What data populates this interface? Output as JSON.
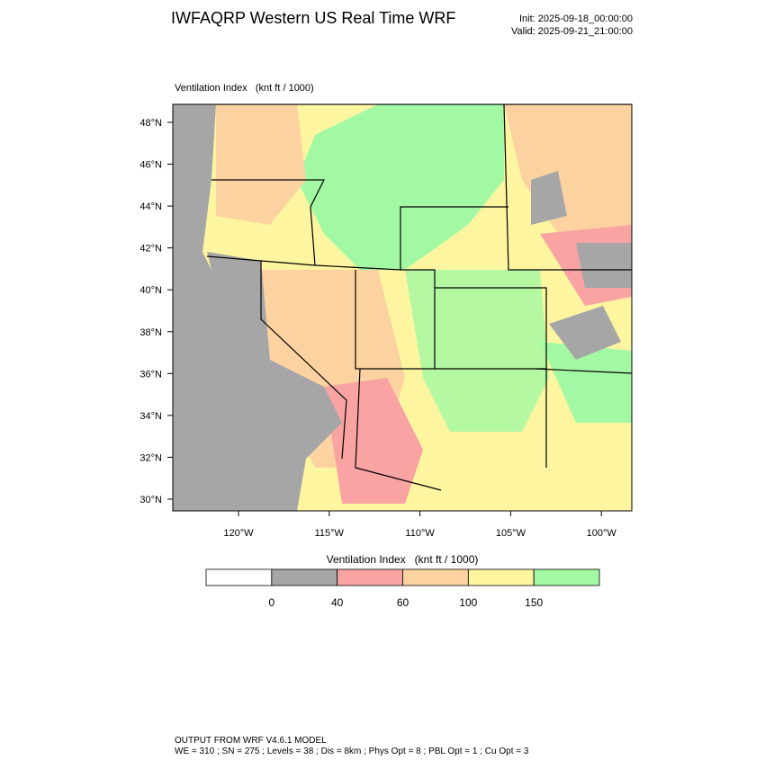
{
  "header": {
    "title": "IWFAQRP Western US Real Time WRF",
    "init": "Init: 2025-09-18_00:00:00",
    "valid": "Valid: 2025-09-21_21:00:00"
  },
  "map": {
    "label": "Ventilation Index   (knt ft / 1000)",
    "lat_labels": [
      "48°N",
      "46°N",
      "44°N",
      "42°N",
      "40°N",
      "38°N",
      "36°N",
      "34°N",
      "32°N",
      "30°N"
    ],
    "lon_labels": [
      "120°W",
      "115°W",
      "110°W",
      "105°W",
      "100°W"
    ]
  },
  "colorbar": {
    "title": "Ventilation Index   (knt ft / 1000)",
    "labels": [
      "0",
      "40",
      "60",
      "100",
      "150"
    ],
    "colors": [
      "#ffffff",
      "#a6a6a6",
      "#f9a3a3",
      "#fcd3a0",
      "#fdf5a0",
      "#a3f9a3"
    ]
  },
  "footer": {
    "line1": "OUTPUT FROM WRF V4.6.1 MODEL",
    "line2": "WE = 310 ; SN = 275 ; Levels = 38 ; Dis = 8km ; Phys Opt = 8 ; PBL Opt = 1 ; Cu Opt = 3"
  }
}
